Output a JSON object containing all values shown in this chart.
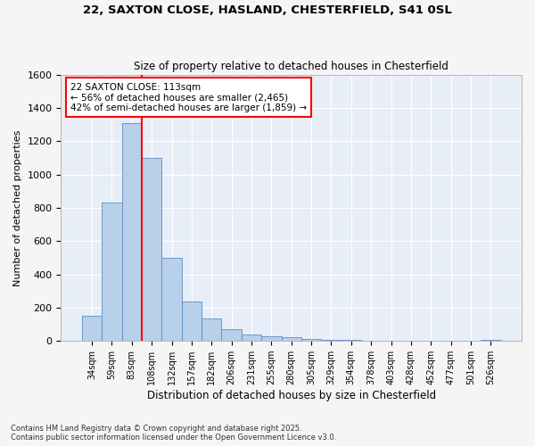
{
  "title_line1": "22, SAXTON CLOSE, HASLAND, CHESTERFIELD, S41 0SL",
  "title_line2": "Size of property relative to detached houses in Chesterfield",
  "xlabel": "Distribution of detached houses by size in Chesterfield",
  "ylabel": "Number of detached properties",
  "footnote1": "Contains HM Land Registry data © Crown copyright and database right 2025.",
  "footnote2": "Contains public sector information licensed under the Open Government Licence v3.0.",
  "categories": [
    "34sqm",
    "59sqm",
    "83sqm",
    "108sqm",
    "132sqm",
    "157sqm",
    "182sqm",
    "206sqm",
    "231sqm",
    "255sqm",
    "280sqm",
    "305sqm",
    "329sqm",
    "354sqm",
    "378sqm",
    "403sqm",
    "428sqm",
    "452sqm",
    "477sqm",
    "501sqm",
    "526sqm"
  ],
  "values": [
    150,
    830,
    1310,
    1100,
    500,
    235,
    135,
    70,
    40,
    28,
    20,
    13,
    8,
    5,
    3,
    2,
    1,
    1,
    0,
    0,
    8
  ],
  "bar_color": "#b8d0ea",
  "bar_edge_color": "#5b8ec4",
  "background_color": "#e8eef8",
  "grid_color": "#ffffff",
  "fig_background": "#f5f5f5",
  "vline_x": 2.5,
  "vline_color": "red",
  "annotation_text": "22 SAXTON CLOSE: 113sqm\n← 56% of detached houses are smaller (2,465)\n42% of semi-detached houses are larger (1,859) →",
  "annotation_box_color": "red",
  "ylim": [
    0,
    1600
  ],
  "yticks": [
    0,
    200,
    400,
    600,
    800,
    1000,
    1200,
    1400,
    1600
  ]
}
